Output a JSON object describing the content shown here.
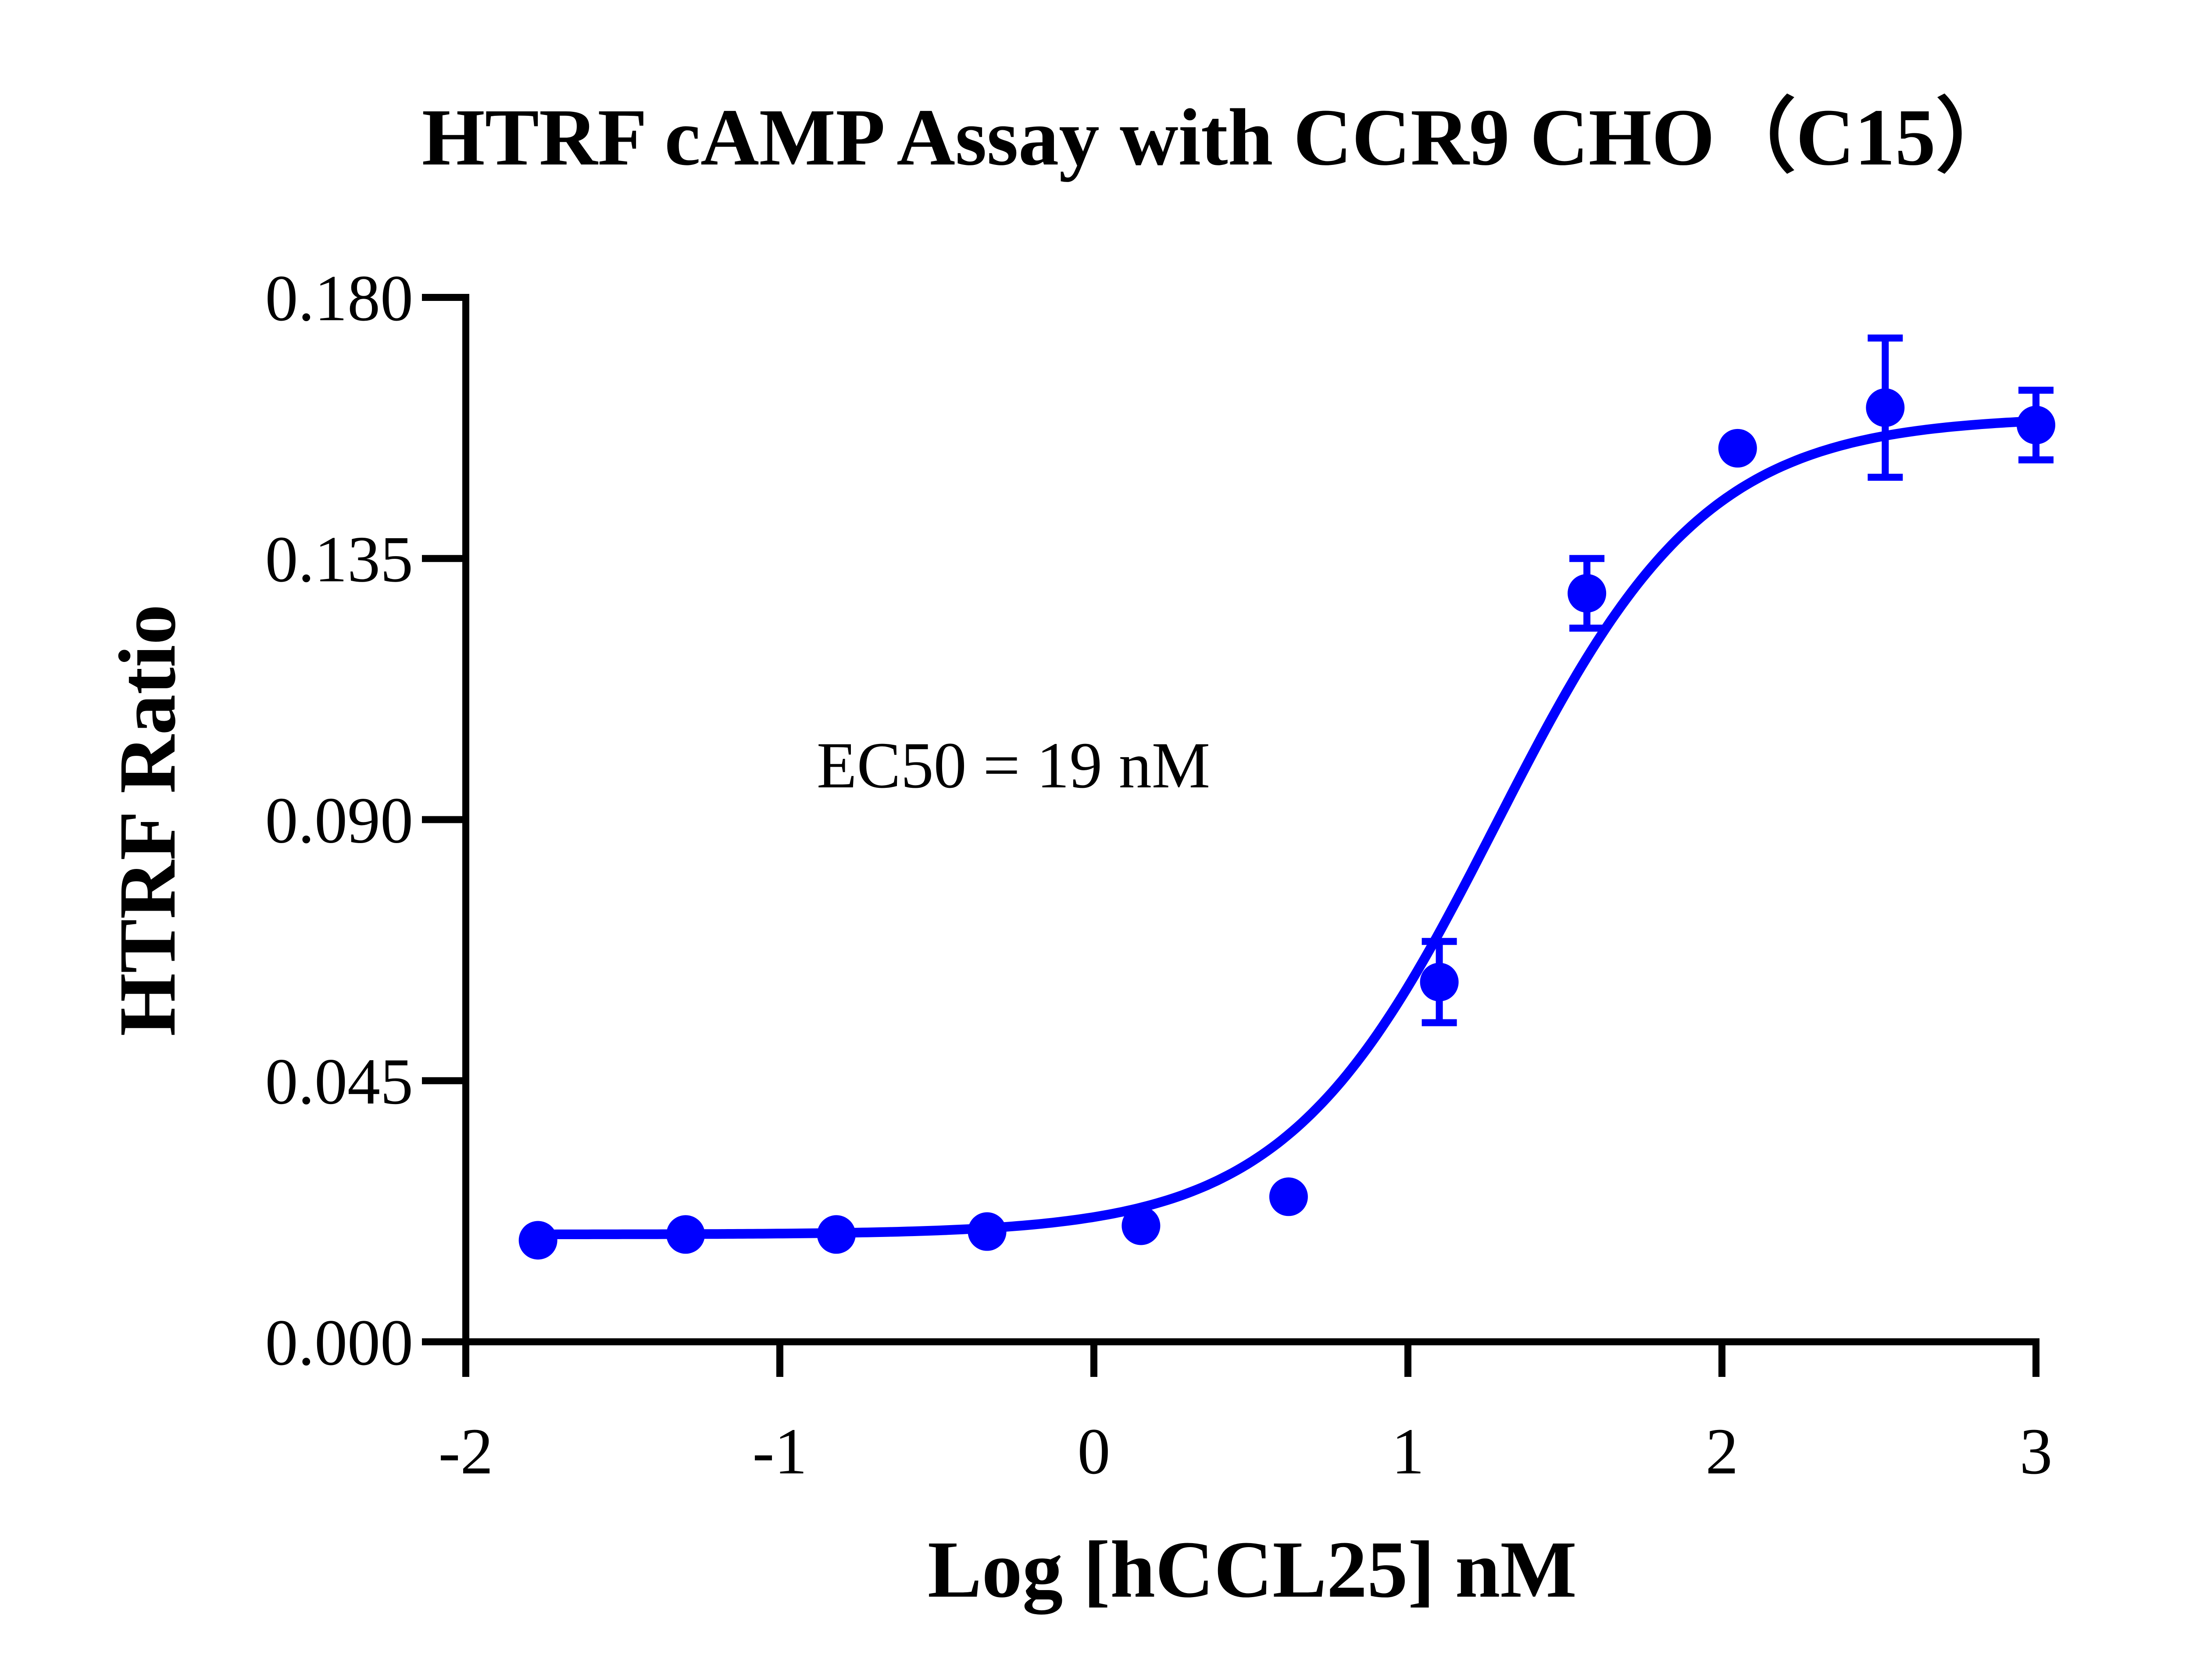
{
  "chart_data": {
    "type": "scatter",
    "title": "HTRF cAMP Assay with CCR9 CHO（C15）",
    "xlabel": "Log [hCCL25] nM",
    "ylabel": "HTRF Ratio",
    "xlim": [
      -2,
      3
    ],
    "ylim": [
      0.0,
      0.18
    ],
    "xticks": [
      -2,
      -1,
      0,
      1,
      2,
      3
    ],
    "yticks": [
      0.0,
      0.045,
      0.09,
      0.135,
      0.18
    ],
    "xtick_labels": [
      "-2",
      "-1",
      "0",
      "1",
      "2",
      "3"
    ],
    "ytick_labels": [
      "0.000",
      "0.045",
      "0.090",
      "0.135",
      "0.180"
    ],
    "annotation": "EC50 = 19 nM",
    "color": "#0000ff",
    "grid": false,
    "series": [
      {
        "x": [
          -1.77,
          -1.3,
          -0.82,
          -0.34,
          0.15,
          0.62,
          1.1,
          1.57,
          2.05,
          2.52,
          3.0
        ],
        "y": [
          0.0175,
          0.0185,
          0.0185,
          0.019,
          0.02,
          0.025,
          0.062,
          0.129,
          0.154,
          0.161,
          0.158
        ],
        "err": [
          0,
          0,
          0,
          0,
          0,
          0,
          0.007,
          0.006,
          0,
          0.012,
          0.006
        ]
      }
    ],
    "fit": {
      "model": "four-parameter logistic",
      "bottom": 0.0185,
      "top": 0.1595,
      "logEC50": 1.2788,
      "hill": 1.3
    }
  }
}
